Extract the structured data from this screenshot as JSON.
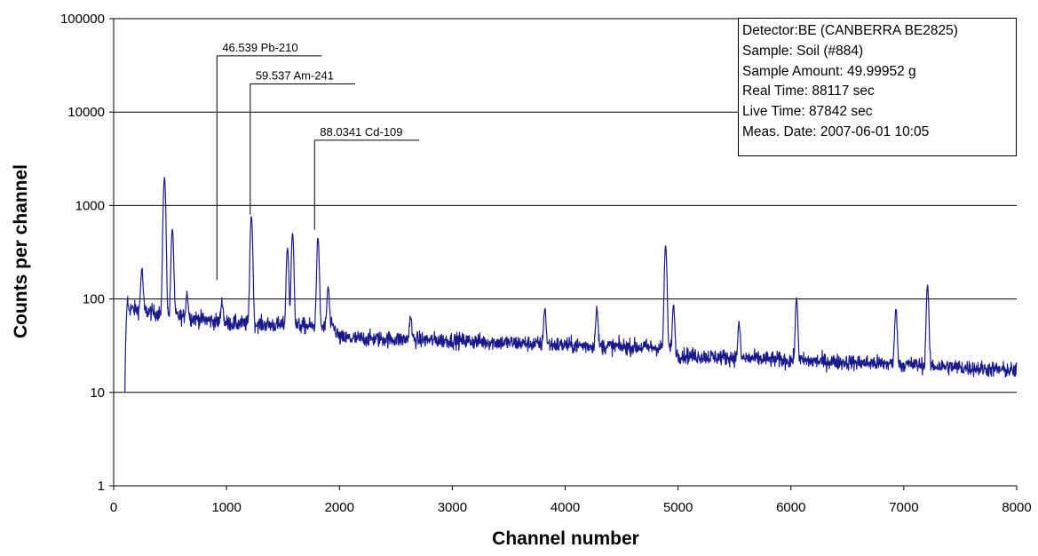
{
  "chart_data": {
    "type": "line",
    "xlabel": "Channel number",
    "ylabel": "Counts per channel",
    "xlim": [
      0,
      8000
    ],
    "ylim": [
      1,
      100000
    ],
    "yscale": "log",
    "grid": "horizontal",
    "line_color": "#1a1a8c",
    "x_ticks": [
      "0",
      "1000",
      "2000",
      "3000",
      "4000",
      "5000",
      "6000",
      "7000",
      "8000"
    ],
    "y_ticks": [
      "1",
      "10",
      "100",
      "1000",
      "10000",
      "100000"
    ],
    "info_box": [
      "Detector:BE (CANBERRA BE2825)",
      "Sample: Soil (#884)",
      "Sample Amount: 49.99952 g",
      "Real Time: 88117 sec",
      "Live Time: 87842 sec",
      "Meas. Date: 2007-06-01  10:05"
    ],
    "annotations": [
      {
        "label": "46.539 Pb-210",
        "x": 915,
        "y_tip": 160,
        "y_label": 40000
      },
      {
        "label": "59.537 Am-241",
        "x": 1210,
        "y_tip": 800,
        "y_label": 20000
      },
      {
        "label": "88.0341 Cd-109",
        "x": 1780,
        "y_tip": 550,
        "y_label": 5000
      }
    ],
    "peaks": [
      {
        "x": 250,
        "y": 210
      },
      {
        "x": 450,
        "y": 2000
      },
      {
        "x": 520,
        "y": 560
      },
      {
        "x": 650,
        "y": 115
      },
      {
        "x": 960,
        "y": 95
      },
      {
        "x": 1220,
        "y": 770
      },
      {
        "x": 1540,
        "y": 350
      },
      {
        "x": 1585,
        "y": 500
      },
      {
        "x": 1810,
        "y": 450
      },
      {
        "x": 1900,
        "y": 135
      },
      {
        "x": 2630,
        "y": 65
      },
      {
        "x": 3820,
        "y": 80
      },
      {
        "x": 4280,
        "y": 80
      },
      {
        "x": 4890,
        "y": 370
      },
      {
        "x": 4960,
        "y": 85
      },
      {
        "x": 5540,
        "y": 55
      },
      {
        "x": 6050,
        "y": 100
      },
      {
        "x": 6930,
        "y": 80
      },
      {
        "x": 7210,
        "y": 140
      }
    ]
  }
}
